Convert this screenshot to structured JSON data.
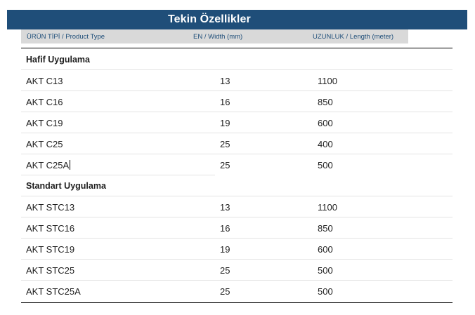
{
  "title": "Tekin Özellikler",
  "headers": {
    "product_type": "ÜRÜN TİPİ / Product Type",
    "width": "EN / Width (mm)",
    "length": "UZUNLUK / Length (meter)"
  },
  "sections": [
    {
      "label": "Hafif Uygulama",
      "rows": [
        {
          "type": "AKT C13",
          "width": "13",
          "length": "1100"
        },
        {
          "type": "AKT C16",
          "width": "16",
          "length": "850"
        },
        {
          "type": "AKT C19",
          "width": "19",
          "length": "600"
        },
        {
          "type": "AKT C25",
          "width": "25",
          "length": "400"
        },
        {
          "type": "AKT C25A",
          "width": "25",
          "length": "500"
        }
      ]
    },
    {
      "label": "Standart Uygulama",
      "rows": [
        {
          "type": "AKT STC13",
          "width": "13",
          "length": "1100"
        },
        {
          "type": "AKT STC16",
          "width": "16",
          "length": "850"
        },
        {
          "type": "AKT STC19",
          "width": "19",
          "length": "600"
        },
        {
          "type": "AKT STC25",
          "width": "25",
          "length": "500"
        },
        {
          "type": "AKT STC25A",
          "width": "25",
          "length": "500"
        }
      ]
    }
  ],
  "colors": {
    "title_bar": "#1f4e79",
    "header_bg": "#d9d9d9",
    "header_text": "#1f4e79"
  }
}
